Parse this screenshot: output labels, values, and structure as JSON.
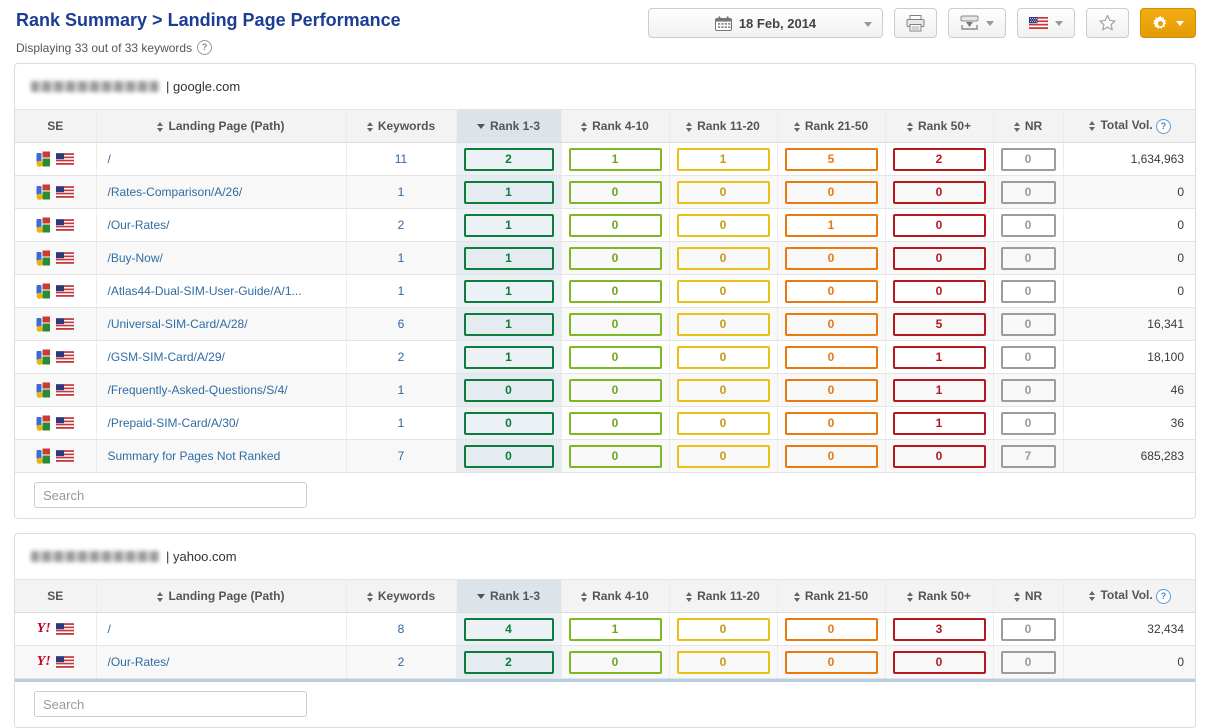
{
  "page": {
    "title": "Rank Summary > Landing Page Performance",
    "subtitle": "Displaying 33 out of 33 keywords",
    "subtitle_help_icon": "question-circle"
  },
  "toolbar": {
    "date_label": "18 Feb, 2014",
    "icons": [
      "calendar-icon",
      "printer-icon",
      "export-icon",
      "us-flag-icon",
      "star-icon",
      "gear-icon"
    ],
    "accent_color": "#eba10a"
  },
  "columns": [
    {
      "label": "SE",
      "sortable": false
    },
    {
      "label": "Landing Page (Path)",
      "sortable": true
    },
    {
      "label": "Keywords",
      "sortable": true
    },
    {
      "label": "Rank 1-3",
      "sortable": true,
      "sorted": "desc"
    },
    {
      "label": "Rank 4-10",
      "sortable": true
    },
    {
      "label": "Rank 11-20",
      "sortable": true
    },
    {
      "label": "Rank 21-50",
      "sortable": true
    },
    {
      "label": "Rank 50+",
      "sortable": true
    },
    {
      "label": "NR",
      "sortable": true
    },
    {
      "label": "Total Vol.",
      "sortable": true,
      "help": true
    }
  ],
  "rank_colors": {
    "rank_1_3": "#0d7c3c",
    "rank_4_10": "#7db822",
    "rank_11_20": "#e9c116",
    "rank_21_50": "#e8790f",
    "rank_50_plus": "#b5191f",
    "nr": "#9c9c9c"
  },
  "tables": [
    {
      "engine": "google",
      "domain_label": "| google.com",
      "search_placeholder": "Search",
      "rows": [
        {
          "path": "/",
          "keywords": "11",
          "r13": "2",
          "r410": "1",
          "r1120": "1",
          "r2150": "5",
          "r50": "2",
          "nr": "0",
          "total": "1,634,963"
        },
        {
          "path": "/Rates-Comparison/A/26/",
          "keywords": "1",
          "r13": "1",
          "r410": "0",
          "r1120": "0",
          "r2150": "0",
          "r50": "0",
          "nr": "0",
          "total": "0"
        },
        {
          "path": "/Our-Rates/",
          "keywords": "2",
          "r13": "1",
          "r410": "0",
          "r1120": "0",
          "r2150": "1",
          "r50": "0",
          "nr": "0",
          "total": "0"
        },
        {
          "path": "/Buy-Now/",
          "keywords": "1",
          "r13": "1",
          "r410": "0",
          "r1120": "0",
          "r2150": "0",
          "r50": "0",
          "nr": "0",
          "total": "0"
        },
        {
          "path": "/Atlas44-Dual-SIM-User-Guide/A/1...",
          "keywords": "1",
          "r13": "1",
          "r410": "0",
          "r1120": "0",
          "r2150": "0",
          "r50": "0",
          "nr": "0",
          "total": "0"
        },
        {
          "path": "/Universal-SIM-Card/A/28/",
          "keywords": "6",
          "r13": "1",
          "r410": "0",
          "r1120": "0",
          "r2150": "0",
          "r50": "5",
          "nr": "0",
          "total": "16,341"
        },
        {
          "path": "/GSM-SIM-Card/A/29/",
          "keywords": "2",
          "r13": "1",
          "r410": "0",
          "r1120": "0",
          "r2150": "0",
          "r50": "1",
          "nr": "0",
          "total": "18,100"
        },
        {
          "path": "/Frequently-Asked-Questions/S/4/",
          "keywords": "1",
          "r13": "0",
          "r410": "0",
          "r1120": "0",
          "r2150": "0",
          "r50": "1",
          "nr": "0",
          "total": "46"
        },
        {
          "path": "/Prepaid-SIM-Card/A/30/",
          "keywords": "1",
          "r13": "0",
          "r410": "0",
          "r1120": "0",
          "r2150": "0",
          "r50": "1",
          "nr": "0",
          "total": "36"
        },
        {
          "path": "Summary for Pages Not Ranked",
          "keywords": "7",
          "r13": "0",
          "r410": "0",
          "r1120": "0",
          "r2150": "0",
          "r50": "0",
          "nr": "7",
          "total": "685,283"
        }
      ]
    },
    {
      "engine": "yahoo",
      "domain_label": "| yahoo.com",
      "search_placeholder": "Search",
      "rows": [
        {
          "path": "/",
          "keywords": "8",
          "r13": "4",
          "r410": "1",
          "r1120": "0",
          "r2150": "0",
          "r50": "3",
          "nr": "0",
          "total": "32,434"
        },
        {
          "path": "/Our-Rates/",
          "keywords": "2",
          "r13": "2",
          "r410": "0",
          "r1120": "0",
          "r2150": "0",
          "r50": "0",
          "nr": "0",
          "total": "0"
        }
      ]
    }
  ]
}
